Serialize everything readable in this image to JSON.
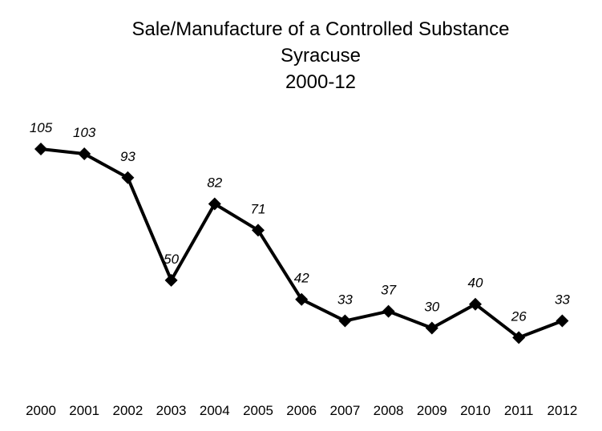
{
  "chart_data": {
    "type": "line",
    "title": "Sale/Manufacture of a Controlled Substance",
    "subtitle": "Syracuse",
    "period": "2000-12",
    "xlabel": "",
    "ylabel": "",
    "categories": [
      "2000",
      "2001",
      "2002",
      "2003",
      "2004",
      "2005",
      "2006",
      "2007",
      "2008",
      "2009",
      "2010",
      "2011",
      "2012"
    ],
    "series": [
      {
        "values": [
          105,
          103,
          93,
          50,
          82,
          71,
          42,
          33,
          37,
          30,
          40,
          26,
          33
        ]
      }
    ],
    "ylim": [
      0,
      150
    ],
    "grid": false,
    "legend": "none",
    "marker": "diamond",
    "line_color": "#000000"
  }
}
